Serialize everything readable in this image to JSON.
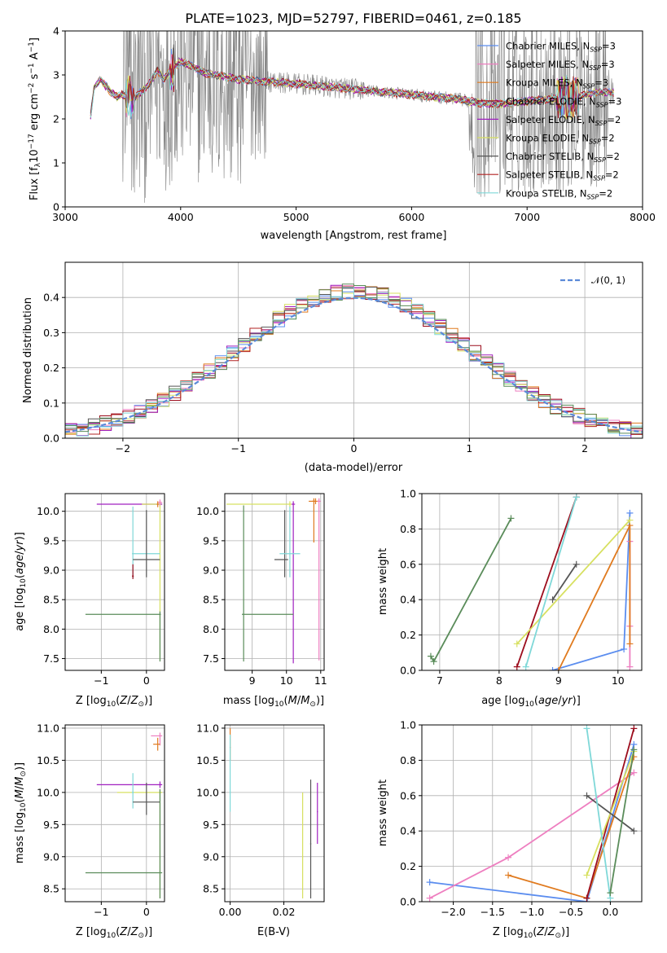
{
  "colors": {
    "series": [
      "#5b8def",
      "#ee7fc0",
      "#e07a1e",
      "#9c0d1d",
      "#a020c0",
      "#d7e060",
      "#555555",
      "#b22222",
      "#7fd8d8"
    ],
    "gaussian": "#5b8ad8",
    "noise": "#808080",
    "green": "#5a8c5a"
  },
  "chart_data": [
    {
      "id": "spectrum",
      "type": "line",
      "title": "PLATE=1023, MJD=52797, FIBERID=0461, z=0.185",
      "xlabel": "wavelength [Angstrom, rest frame]",
      "ylabel": "Flux [f_λ 10^-17 erg cm^-2 s^-1 A^-1]",
      "xlim": [
        3000,
        8000
      ],
      "ylim": [
        0,
        4
      ],
      "xticks": [
        "3000",
        "4000",
        "5000",
        "6000",
        "7000",
        "8000"
      ],
      "yticks": [
        "0",
        "1",
        "2",
        "3",
        "4"
      ],
      "legend_position": "upper-right",
      "legend": [
        {
          "model": "Chabrier MILES",
          "nssp": "3"
        },
        {
          "model": "Salpeter MILES",
          "nssp": "3"
        },
        {
          "model": "Kroupa MILES",
          "nssp": "3"
        },
        {
          "model": "Chabrier ELODIE",
          "nssp": "3"
        },
        {
          "model": "Salpeter ELODIE",
          "nssp": "2"
        },
        {
          "model": "Kroupa ELODIE",
          "nssp": "2"
        },
        {
          "model": "Chabrier STELIB",
          "nssp": "2"
        },
        {
          "model": "Salpeter STELIB",
          "nssp": "2"
        },
        {
          "model": "Kroupa STELIB",
          "nssp": "2"
        }
      ],
      "model_x": [
        3220,
        3250,
        3300,
        3350,
        3400,
        3450,
        3500,
        3550,
        3600,
        3650,
        3700,
        3750,
        3800,
        3850,
        3900,
        3950,
        4000,
        4100,
        4200,
        4300,
        4400,
        4500,
        4600,
        4700,
        4800,
        4900,
        5000,
        5200,
        5400,
        5600,
        5800,
        6000,
        6200,
        6400,
        6600,
        6800,
        7000,
        7200,
        7400,
        7600
      ],
      "model_y": [
        2.05,
        2.7,
        2.9,
        2.75,
        2.6,
        2.5,
        2.55,
        2.5,
        2.45,
        2.6,
        2.7,
        2.9,
        3.1,
        2.9,
        3.05,
        3.2,
        3.3,
        3.2,
        3.05,
        3.0,
        2.95,
        2.9,
        2.88,
        2.85,
        2.85,
        2.82,
        2.8,
        2.75,
        2.7,
        2.65,
        2.6,
        2.55,
        2.5,
        2.45,
        2.35,
        2.35,
        2.4,
        2.45,
        2.5,
        2.6
      ]
    },
    {
      "id": "residuals",
      "type": "line",
      "xlabel": "(data-model)/error",
      "ylabel": "Normed distribution",
      "xlim": [
        -2.5,
        2.5
      ],
      "ylim": [
        0,
        0.5
      ],
      "xticks": [
        "−2",
        "−1",
        "0",
        "1",
        "2"
      ],
      "yticks": [
        "0.0",
        "0.1",
        "0.2",
        "0.3",
        "0.4"
      ],
      "legend": "𝒩(0, 1)",
      "legend_position": "upper-right",
      "grid": true
    },
    {
      "id": "age-vs-Z",
      "type": "scatter",
      "xlabel": "Z [log10(Z/Z⊙)]",
      "ylabel": "age  [log10(age/yr)]",
      "xlim": [
        -1.8,
        0.4
      ],
      "ylim": [
        7.3,
        10.3
      ],
      "xticks": [
        "−1",
        "0"
      ],
      "yticks": [
        "7.5",
        "8.0",
        "8.5",
        "9.0",
        "9.5",
        "10.0"
      ]
    },
    {
      "id": "age-vs-mass",
      "type": "scatter",
      "xlabel": "mass [log10(M/M⊙)]",
      "xlim": [
        8.2,
        11.1
      ],
      "ylim": [
        7.3,
        10.3
      ],
      "xticks": [
        "9",
        "10",
        "11"
      ],
      "yticks": [
        "7.5",
        "8.0",
        "8.5",
        "9.0",
        "9.5",
        "10.0"
      ]
    },
    {
      "id": "weight-vs-age",
      "type": "line",
      "xlabel": "age  [log10(age/yr)]",
      "ylabel": "mass weight",
      "xlim": [
        6.7,
        10.4
      ],
      "ylim": [
        0,
        1
      ],
      "xticks": [
        "7",
        "8",
        "9",
        "10"
      ],
      "yticks": [
        "0.0",
        "0.2",
        "0.4",
        "0.6",
        "0.8",
        "1.0"
      ],
      "grid": true,
      "series": [
        {
          "name": "Chabrier MILES",
          "x": [
            8.9,
            10.1,
            10.2
          ],
          "y": [
            0.0,
            0.12,
            0.89
          ]
        },
        {
          "name": "Salpeter MILES",
          "x": [
            10.2,
            10.2,
            10.2
          ],
          "y": [
            0.02,
            0.25,
            0.73
          ]
        },
        {
          "name": "Kroupa MILES",
          "x": [
            9.0,
            10.2,
            10.2
          ],
          "y": [
            0.0,
            0.82,
            0.15
          ]
        },
        {
          "name": "Chabrier ELODIE",
          "x": [
            8.3,
            9.3
          ],
          "y": [
            0.02,
            0.98
          ]
        },
        {
          "name": "Kroupa ELODIE",
          "x": [
            8.3,
            10.2
          ],
          "y": [
            0.15,
            0.85
          ]
        },
        {
          "name": "Chabrier STELIB",
          "x": [
            8.9,
            9.3
          ],
          "y": [
            0.4,
            0.6
          ]
        },
        {
          "name": "Kroupa STELIB",
          "x": [
            8.45,
            9.3
          ],
          "y": [
            0.02,
            0.98
          ]
        },
        {
          "name": "green",
          "x": [
            6.85,
            6.9,
            8.2
          ],
          "y": [
            0.08,
            0.05,
            0.86
          ]
        }
      ]
    },
    {
      "id": "mass-vs-Z",
      "type": "scatter",
      "xlabel": "Z [log10(Z/Z⊙)]",
      "ylabel": "mass [log10(M/M⊙)]",
      "xlim": [
        -1.8,
        0.4
      ],
      "ylim": [
        8.3,
        11.05
      ],
      "xticks": [
        "−1",
        "0"
      ],
      "yticks": [
        "8.5",
        "9.0",
        "9.5",
        "10.0",
        "10.5",
        "11.0"
      ]
    },
    {
      "id": "mass-vs-EBV",
      "type": "scatter",
      "xlabel": "E(B-V)",
      "xlim": [
        -0.002,
        0.035
      ],
      "ylim": [
        8.3,
        11.05
      ],
      "xticks": [
        "0.00",
        "0.02"
      ],
      "yticks": [
        "8.5",
        "9.0",
        "9.5",
        "10.0",
        "10.5",
        "11.0"
      ]
    },
    {
      "id": "weight-vs-Z",
      "type": "line",
      "xlabel": "Z [log10(Z/Z⊙)]",
      "ylabel": "mass weight",
      "xlim": [
        -2.4,
        0.4
      ],
      "ylim": [
        0,
        1
      ],
      "xticks": [
        "−2.0",
        "−1.5",
        "−1.0",
        "−0.5",
        "0.0"
      ],
      "yticks": [
        "0.0",
        "0.2",
        "0.4",
        "0.6",
        "0.8",
        "1.0"
      ],
      "grid": true,
      "series": [
        {
          "name": "Chabrier MILES",
          "x": [
            -2.3,
            -0.3,
            0.3
          ],
          "y": [
            0.11,
            0.0,
            0.89
          ]
        },
        {
          "name": "Salpeter MILES",
          "x": [
            -2.3,
            -1.3,
            0.3
          ],
          "y": [
            0.02,
            0.25,
            0.73
          ]
        },
        {
          "name": "Kroupa MILES",
          "x": [
            -1.3,
            -0.3,
            0.3
          ],
          "y": [
            0.15,
            0.02,
            0.82
          ]
        },
        {
          "name": "Chabrier ELODIE",
          "x": [
            -0.3,
            0.3
          ],
          "y": [
            0.02,
            0.98
          ]
        },
        {
          "name": "Kroupa ELODIE",
          "x": [
            -0.3,
            0.3
          ],
          "y": [
            0.15,
            0.85
          ]
        },
        {
          "name": "Chabrier STELIB",
          "x": [
            -0.3,
            0.3
          ],
          "y": [
            0.6,
            0.4
          ]
        },
        {
          "name": "Kroupa STELIB",
          "x": [
            -0.3,
            0.0
          ],
          "y": [
            0.98,
            0.02
          ]
        },
        {
          "name": "green",
          "x": [
            0.0,
            0.3
          ],
          "y": [
            0.05,
            0.86
          ]
        }
      ]
    }
  ]
}
